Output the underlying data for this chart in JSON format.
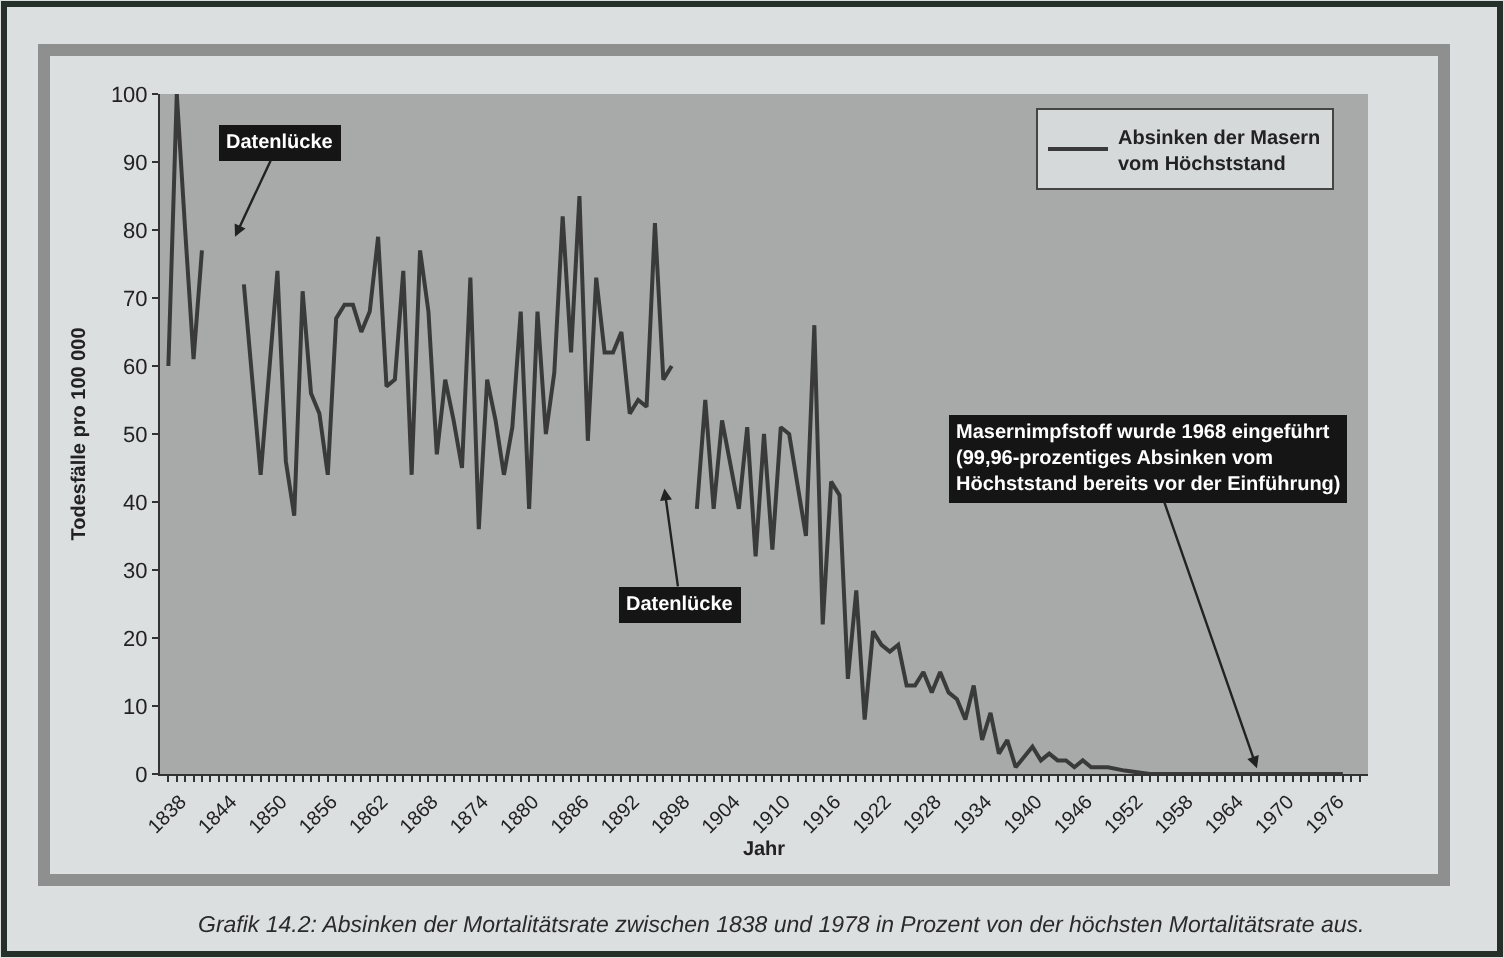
{
  "chart_data": {
    "type": "line",
    "xlabel": "Jahr",
    "ylabel": "Todesfälle pro 100 000",
    "legend": "top right",
    "grid": false,
    "line_style": "solid",
    "series": [
      {
        "name": "Absinken der Masern\nvom Höchststand",
        "color": "#3a3a3a",
        "x": [
          1838,
          1839,
          1840,
          1841,
          1842,
          1845,
          1847,
          1849,
          1851,
          1852,
          1853,
          1854,
          1855,
          1856,
          1857,
          1858,
          1859,
          1860,
          1861,
          1862,
          1863,
          1864,
          1865,
          1866,
          1867,
          1868,
          1869,
          1870,
          1871,
          1872,
          1873,
          1874,
          1875,
          1876,
          1877,
          1878,
          1879,
          1880,
          1881,
          1882,
          1883,
          1884,
          1885,
          1886,
          1887,
          1888,
          1889,
          1890,
          1891,
          1892,
          1893,
          1894,
          1895,
          1896,
          1897,
          1898,
          1899,
          1901,
          1902,
          1903,
          1904,
          1906,
          1907,
          1908,
          1909,
          1910,
          1911,
          1912,
          1914,
          1915,
          1916,
          1917,
          1918,
          1919,
          1920,
          1921,
          1922,
          1923,
          1924,
          1925,
          1926,
          1927,
          1928,
          1929,
          1930,
          1931,
          1932,
          1933,
          1934,
          1935,
          1936,
          1937,
          1938,
          1939,
          1941,
          1942,
          1943,
          1944,
          1945,
          1946,
          1947,
          1948,
          1950,
          1952,
          1955,
          1978
        ],
        "values": [
          60,
          100,
          80,
          61,
          77,
          null,
          72,
          44,
          74,
          46,
          38,
          71,
          56,
          53,
          44,
          67,
          69,
          69,
          65,
          68,
          79,
          57,
          58,
          74,
          44,
          77,
          68,
          47,
          58,
          52,
          45,
          73,
          36,
          58,
          52,
          44,
          51,
          68,
          39,
          68,
          50,
          59,
          82,
          62,
          85,
          49,
          73,
          62,
          62,
          65,
          53,
          55,
          54,
          81,
          58,
          60,
          null,
          39,
          55,
          39,
          52,
          39,
          51,
          32,
          50,
          33,
          51,
          50,
          35,
          66,
          22,
          43,
          41,
          14,
          27,
          8,
          21,
          19,
          18,
          19,
          13,
          13,
          15,
          12,
          15,
          12,
          11,
          8,
          13,
          5,
          9,
          3,
          5,
          1,
          4,
          2,
          3,
          2,
          2,
          1,
          2,
          1,
          1,
          0.5,
          0,
          0
        ]
      }
    ],
    "xlim": [
      1837,
      1981
    ],
    "xticks": [
      1838,
      {
        "value": 1839,
        "label": null
      },
      {
        "value": 1840,
        "label": null
      },
      {
        "value": 1841,
        "label": null
      },
      {
        "value": 1842,
        "label": null
      },
      {
        "value": 1843,
        "label": null
      },
      1844,
      {
        "value": 1845,
        "label": null
      },
      {
        "value": 1846,
        "label": null
      },
      {
        "value": 1847,
        "label": null
      },
      {
        "value": 1848,
        "label": null
      },
      {
        "value": 1849,
        "label": null
      },
      1850,
      {
        "value": 1851,
        "label": null
      },
      {
        "value": 1852,
        "label": null
      },
      {
        "value": 1853,
        "label": null
      },
      {
        "value": 1854,
        "label": null
      },
      {
        "value": 1855,
        "label": null
      },
      1856,
      {
        "value": 1857,
        "label": null
      },
      {
        "value": 1858,
        "label": null
      },
      {
        "value": 1859,
        "label": null
      },
      {
        "value": 1860,
        "label": null
      },
      {
        "value": 1861,
        "label": null
      },
      1862,
      {
        "value": 1863,
        "label": null
      },
      {
        "value": 1864,
        "label": null
      },
      {
        "value": 1865,
        "label": null
      },
      {
        "value": 1866,
        "label": null
      },
      {
        "value": 1867,
        "label": null
      },
      1868,
      {
        "value": 1869,
        "label": null
      },
      {
        "value": 1870,
        "label": null
      },
      {
        "value": 1871,
        "label": null
      },
      {
        "value": 1872,
        "label": null
      },
      {
        "value": 1873,
        "label": null
      },
      1874,
      {
        "value": 1875,
        "label": null
      },
      {
        "value": 1876,
        "label": null
      },
      {
        "value": 1877,
        "label": null
      },
      {
        "value": 1878,
        "label": null
      },
      {
        "value": 1879,
        "label": null
      },
      1880,
      {
        "value": 1881,
        "label": null
      },
      {
        "value": 1882,
        "label": null
      },
      {
        "value": 1883,
        "label": null
      },
      {
        "value": 1884,
        "label": null
      },
      {
        "value": 1885,
        "label": null
      },
      1886,
      {
        "value": 1887,
        "label": null
      },
      {
        "value": 1888,
        "label": null
      },
      {
        "value": 1889,
        "label": null
      },
      {
        "value": 1890,
        "label": null
      },
      {
        "value": 1891,
        "label": null
      },
      1892,
      {
        "value": 1893,
        "label": null
      },
      {
        "value": 1894,
        "label": null
      },
      {
        "value": 1895,
        "label": null
      },
      {
        "value": 1896,
        "label": null
      },
      {
        "value": 1897,
        "label": null
      },
      1898,
      {
        "value": 1899,
        "label": null
      },
      {
        "value": 1900,
        "label": null
      },
      {
        "value": 1901,
        "label": null
      },
      {
        "value": 1902,
        "label": null
      },
      {
        "value": 1903,
        "label": null
      },
      1904,
      {
        "value": 1905,
        "label": null
      },
      {
        "value": 1906,
        "label": null
      },
      {
        "value": 1907,
        "label": null
      },
      {
        "value": 1908,
        "label": null
      },
      {
        "value": 1909,
        "label": null
      },
      1910,
      {
        "value": 1911,
        "label": null
      },
      {
        "value": 1912,
        "label": null
      },
      {
        "value": 1913,
        "label": null
      },
      {
        "value": 1914,
        "label": null
      },
      {
        "value": 1915,
        "label": null
      },
      1916,
      {
        "value": 1917,
        "label": null
      },
      {
        "value": 1918,
        "label": null
      },
      {
        "value": 1919,
        "label": null
      },
      {
        "value": 1920,
        "label": null
      },
      {
        "value": 1921,
        "label": null
      },
      1922,
      {
        "value": 1923,
        "label": null
      },
      {
        "value": 1924,
        "label": null
      },
      {
        "value": 1925,
        "label": null
      },
      {
        "value": 1926,
        "label": null
      },
      {
        "value": 1927,
        "label": null
      },
      1928,
      {
        "value": 1929,
        "label": null
      },
      {
        "value": 1930,
        "label": null
      },
      {
        "value": 1931,
        "label": null
      },
      {
        "value": 1932,
        "label": null
      },
      {
        "value": 1933,
        "label": null
      },
      1934,
      {
        "value": 1935,
        "label": null
      },
      {
        "value": 1936,
        "label": null
      },
      {
        "value": 1937,
        "label": null
      },
      {
        "value": 1938,
        "label": null
      },
      {
        "value": 1939,
        "label": null
      },
      1940,
      {
        "value": 1941,
        "label": null
      },
      {
        "value": 1942,
        "label": null
      },
      {
        "value": 1943,
        "label": null
      },
      {
        "value": 1944,
        "label": null
      },
      {
        "value": 1945,
        "label": null
      },
      1946,
      {
        "value": 1947,
        "label": null
      },
      {
        "value": 1948,
        "label": null
      },
      {
        "value": 1949,
        "label": null
      },
      {
        "value": 1950,
        "label": null
      },
      {
        "value": 1951,
        "label": null
      },
      1952,
      {
        "value": 1953,
        "label": null
      },
      {
        "value": 1954,
        "label": null
      },
      {
        "value": 1955,
        "label": null
      },
      {
        "value": 1956,
        "label": null
      },
      {
        "value": 1957,
        "label": null
      },
      1958,
      {
        "value": 1959,
        "label": null
      },
      {
        "value": 1960,
        "label": null
      },
      {
        "value": 1961,
        "label": null
      },
      {
        "value": 1962,
        "label": null
      },
      {
        "value": 1963,
        "label": null
      },
      1964,
      {
        "value": 1965,
        "label": null
      },
      {
        "value": 1966,
        "label": null
      },
      {
        "value": 1967,
        "label": null
      },
      {
        "value": 1968,
        "label": null
      },
      {
        "value": 1969,
        "label": null
      },
      1970,
      {
        "value": 1971,
        "label": null
      },
      {
        "value": 1972,
        "label": null
      },
      {
        "value": 1973,
        "label": null
      },
      {
        "value": 1974,
        "label": null
      },
      {
        "value": 1975,
        "label": null
      },
      1976,
      {
        "value": 1977,
        "label": null
      },
      {
        "value": 1978,
        "label": null
      },
      {
        "value": 1979,
        "label": null
      },
      {
        "value": 1980,
        "label": null
      }
    ],
    "ylim": [
      0,
      100
    ],
    "yticks": [
      0,
      10,
      20,
      30,
      40,
      50,
      60,
      70,
      80,
      90,
      100
    ],
    "annotations": [
      "Datenlücke",
      "Datenlücke",
      {
        "text": "Masernimpfstoff wurde 1968 eingeführt\n(99,96-prozentiges Absinken vom\nHöchststand bereits vor der Einführung)",
        "x": 1968,
        "y": 0
      },
      "Grafik 14.2: Absinken der Mortalitätsrate zwischen 1838 und 1978 in Prozent von der höchsten Mortalitätsrate aus."
    ]
  }
}
